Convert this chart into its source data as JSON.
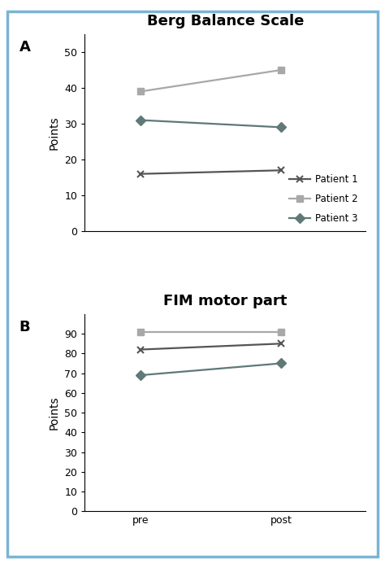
{
  "title_A": "Berg Balance Scale",
  "title_B": "FIM motor part",
  "panel_A": "A",
  "panel_B": "B",
  "ylabel": "Points",
  "xtick_labels": [
    "pre",
    "post"
  ],
  "patient1_color": "#555555",
  "patient2_color": "#a8a8a8",
  "patient3_color": "#607878",
  "berg_patient1": [
    16,
    17
  ],
  "berg_patient2": [
    39,
    45
  ],
  "berg_patient3": [
    31,
    29
  ],
  "fim_patient1": [
    82,
    85
  ],
  "fim_patient2": [
    91,
    91
  ],
  "fim_patient3": [
    69,
    75
  ],
  "berg_ylim": [
    0,
    55
  ],
  "berg_yticks": [
    0,
    10,
    20,
    30,
    40,
    50
  ],
  "fim_ylim": [
    0,
    100
  ],
  "fim_yticks": [
    0,
    10,
    20,
    30,
    40,
    50,
    60,
    70,
    80,
    90
  ],
  "legend_labels": [
    "Patient 1",
    "Patient 2",
    "Patient 3"
  ],
  "bg_color": "#ffffff",
  "border_color": "#7ab4d4",
  "marker_p1": "x",
  "marker_p2": "s",
  "marker_p3": "D",
  "linewidth": 1.6,
  "markersize": 6,
  "title_fontsize": 13,
  "label_fontsize": 10,
  "tick_fontsize": 9,
  "legend_fontsize": 8.5,
  "panel_fontsize": 13
}
